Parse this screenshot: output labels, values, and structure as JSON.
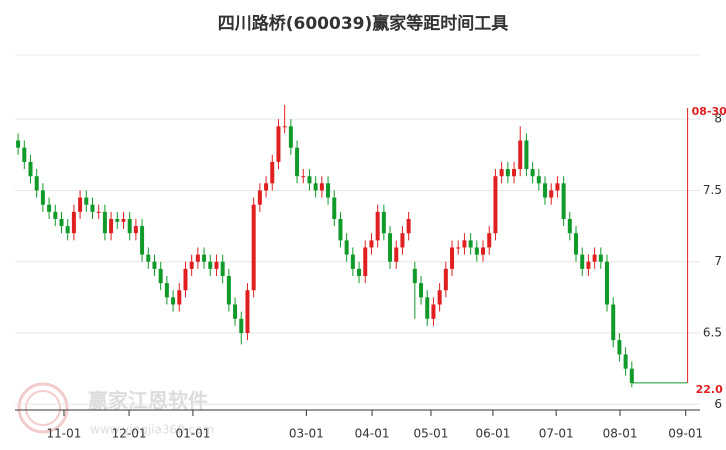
{
  "chart_data": {
    "type": "candlestick",
    "title": "四川路桥(600039)赢家等距时间工具",
    "watermark": {
      "name": "赢家江恩软件",
      "url": "www.yingjia360.com"
    },
    "up_color": "#e02020",
    "down_color": "#109a2a",
    "ohlc": [
      [
        7.85,
        7.9,
        7.75,
        7.8
      ],
      [
        7.8,
        7.85,
        7.65,
        7.7
      ],
      [
        7.7,
        7.75,
        7.55,
        7.6
      ],
      [
        7.6,
        7.65,
        7.45,
        7.5
      ],
      [
        7.5,
        7.55,
        7.35,
        7.4
      ],
      [
        7.4,
        7.45,
        7.3,
        7.35
      ],
      [
        7.35,
        7.4,
        7.25,
        7.3
      ],
      [
        7.3,
        7.35,
        7.2,
        7.25
      ],
      [
        7.25,
        7.3,
        7.15,
        7.2
      ],
      [
        7.2,
        7.4,
        7.15,
        7.35
      ],
      [
        7.35,
        7.5,
        7.3,
        7.45
      ],
      [
        7.45,
        7.5,
        7.35,
        7.4
      ],
      [
        7.4,
        7.45,
        7.3,
        7.35
      ],
      [
        7.35,
        7.4,
        7.3,
        7.35
      ],
      [
        7.35,
        7.4,
        7.15,
        7.2
      ],
      [
        7.2,
        7.35,
        7.15,
        7.3
      ],
      [
        7.3,
        7.35,
        7.23,
        7.28
      ],
      [
        7.28,
        7.35,
        7.23,
        7.3
      ],
      [
        7.3,
        7.35,
        7.15,
        7.2
      ],
      [
        7.2,
        7.3,
        7.15,
        7.25
      ],
      [
        7.25,
        7.3,
        7.0,
        7.05
      ],
      [
        7.05,
        7.1,
        6.95,
        7.0
      ],
      [
        7.0,
        7.05,
        6.9,
        6.95
      ],
      [
        6.95,
        7.0,
        6.8,
        6.85
      ],
      [
        6.85,
        6.9,
        6.7,
        6.75
      ],
      [
        6.75,
        6.8,
        6.65,
        6.7
      ],
      [
        6.7,
        6.85,
        6.65,
        6.8
      ],
      [
        6.8,
        7.0,
        6.75,
        6.95
      ],
      [
        6.95,
        7.05,
        6.9,
        7.0
      ],
      [
        7.0,
        7.1,
        6.95,
        7.05
      ],
      [
        7.05,
        7.1,
        6.95,
        7.0
      ],
      [
        7.0,
        7.05,
        6.9,
        6.95
      ],
      [
        6.95,
        7.05,
        6.9,
        7.0
      ],
      [
        7.0,
        7.05,
        6.85,
        6.9
      ],
      [
        6.9,
        6.95,
        6.65,
        6.7
      ],
      [
        6.7,
        6.75,
        6.55,
        6.6
      ],
      [
        6.6,
        6.65,
        6.42,
        6.5
      ],
      [
        6.5,
        6.85,
        6.45,
        6.8
      ],
      [
        6.8,
        7.45,
        6.75,
        7.4
      ],
      [
        7.4,
        7.55,
        7.35,
        7.5
      ],
      [
        7.5,
        7.6,
        7.45,
        7.55
      ],
      [
        7.55,
        7.75,
        7.5,
        7.7
      ],
      [
        7.7,
        8.0,
        7.65,
        7.95
      ],
      [
        7.95,
        8.1,
        7.9,
        7.95
      ],
      [
        7.95,
        8.0,
        7.75,
        7.8
      ],
      [
        7.8,
        7.85,
        7.55,
        7.6
      ],
      [
        7.6,
        7.65,
        7.55,
        7.6
      ],
      [
        7.6,
        7.65,
        7.5,
        7.55
      ],
      [
        7.55,
        7.6,
        7.45,
        7.5
      ],
      [
        7.5,
        7.6,
        7.45,
        7.55
      ],
      [
        7.55,
        7.6,
        7.4,
        7.45
      ],
      [
        7.45,
        7.5,
        7.25,
        7.3
      ],
      [
        7.3,
        7.35,
        7.1,
        7.15
      ],
      [
        7.15,
        7.2,
        7.0,
        7.05
      ],
      [
        7.05,
        7.1,
        6.9,
        6.95
      ],
      [
        6.95,
        7.0,
        6.85,
        6.9
      ],
      [
        6.9,
        7.15,
        6.85,
        7.1
      ],
      [
        7.1,
        7.2,
        7.05,
        7.15
      ],
      [
        7.15,
        7.4,
        7.1,
        7.35
      ],
      [
        7.35,
        7.4,
        7.15,
        7.2
      ],
      [
        7.2,
        7.25,
        6.95,
        7.0
      ],
      [
        7.0,
        7.15,
        6.95,
        7.1
      ],
      [
        7.1,
        7.25,
        7.05,
        7.2
      ],
      [
        7.2,
        7.35,
        7.15,
        7.3
      ],
      [
        6.95,
        7.0,
        6.6,
        6.85
      ],
      [
        6.85,
        6.9,
        6.7,
        6.75
      ],
      [
        6.75,
        6.8,
        6.55,
        6.6
      ],
      [
        6.6,
        6.75,
        6.55,
        6.7
      ],
      [
        6.7,
        6.85,
        6.65,
        6.8
      ],
      [
        6.8,
        7.0,
        6.75,
        6.95
      ],
      [
        6.95,
        7.15,
        6.9,
        7.1
      ],
      [
        7.1,
        7.15,
        7.05,
        7.1
      ],
      [
        7.1,
        7.2,
        7.05,
        7.15
      ],
      [
        7.15,
        7.2,
        7.05,
        7.1
      ],
      [
        7.1,
        7.15,
        7.0,
        7.05
      ],
      [
        7.05,
        7.15,
        7.0,
        7.1
      ],
      [
        7.1,
        7.25,
        7.05,
        7.2
      ],
      [
        7.2,
        7.65,
        7.15,
        7.6
      ],
      [
        7.6,
        7.7,
        7.55,
        7.65
      ],
      [
        7.65,
        7.7,
        7.55,
        7.6
      ],
      [
        7.6,
        7.7,
        7.55,
        7.65
      ],
      [
        7.65,
        7.95,
        7.6,
        7.85
      ],
      [
        7.85,
        7.9,
        7.6,
        7.65
      ],
      [
        7.65,
        7.7,
        7.55,
        7.6
      ],
      [
        7.6,
        7.65,
        7.5,
        7.55
      ],
      [
        7.55,
        7.6,
        7.4,
        7.45
      ],
      [
        7.45,
        7.55,
        7.4,
        7.5
      ],
      [
        7.5,
        7.6,
        7.45,
        7.55
      ],
      [
        7.55,
        7.6,
        7.25,
        7.3
      ],
      [
        7.3,
        7.35,
        7.15,
        7.2
      ],
      [
        7.2,
        7.25,
        7.0,
        7.05
      ],
      [
        7.05,
        7.1,
        6.9,
        6.95
      ],
      [
        6.95,
        7.05,
        6.9,
        7.0
      ],
      [
        7.0,
        7.1,
        6.95,
        7.05
      ],
      [
        7.05,
        7.1,
        6.95,
        7.0
      ],
      [
        7.0,
        7.05,
        6.65,
        6.7
      ],
      [
        6.7,
        6.75,
        6.4,
        6.45
      ],
      [
        6.45,
        6.5,
        6.3,
        6.35
      ],
      [
        6.35,
        6.4,
        6.2,
        6.25
      ],
      [
        6.25,
        6.3,
        6.12,
        6.15
      ]
    ],
    "projection": {
      "x": [
        99,
        108
      ],
      "values": [
        6.15,
        6.15
      ],
      "color": "#109a2a"
    },
    "marker": {
      "x": 108,
      "label": "08-30",
      "note": "22.0",
      "color": "#e02020"
    },
    "xlim": [
      -0.5,
      110
    ],
    "xticks": [
      {
        "value": 7.4,
        "label": "11-01"
      },
      {
        "value": 17.9,
        "label": "12-01"
      },
      {
        "value": 28.2,
        "label": "01-01"
      },
      {
        "value": 46.5,
        "label": "03-01"
      },
      {
        "value": 57.1,
        "label": "04-01"
      },
      {
        "value": 66.6,
        "label": "05-01"
      },
      {
        "value": 76.6,
        "label": "06-01"
      },
      {
        "value": 86.8,
        "label": "07-01"
      },
      {
        "value": 97.1,
        "label": "08-01"
      },
      {
        "value": 107.7,
        "label": "09-01"
      }
    ],
    "ylim": [
      5.96,
      8.45
    ],
    "yticks": [
      8,
      7.5,
      7,
      6.5,
      6
    ],
    "grid": true
  }
}
